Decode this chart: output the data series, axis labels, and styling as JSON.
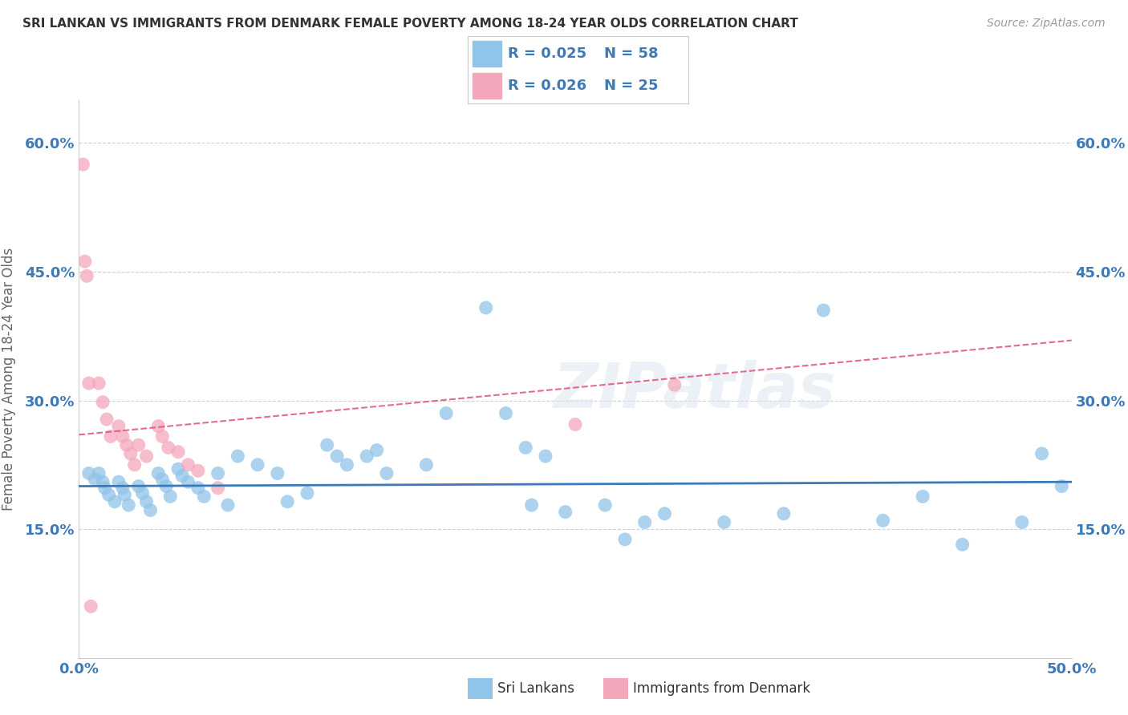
{
  "title": "SRI LANKAN VS IMMIGRANTS FROM DENMARK FEMALE POVERTY AMONG 18-24 YEAR OLDS CORRELATION CHART",
  "source": "Source: ZipAtlas.com",
  "ylabel": "Female Poverty Among 18-24 Year Olds",
  "xlim": [
    0.0,
    0.5
  ],
  "ylim": [
    0.0,
    0.65
  ],
  "xticks": [
    0.0,
    0.05,
    0.1,
    0.15,
    0.2,
    0.25,
    0.3,
    0.35,
    0.4,
    0.45,
    0.5
  ],
  "xtick_labels": [
    "0.0%",
    "",
    "",
    "",
    "",
    "",
    "",
    "",
    "",
    "",
    "50.0%"
  ],
  "yticks": [
    0.15,
    0.3,
    0.45,
    0.6
  ],
  "ytick_labels": [
    "15.0%",
    "30.0%",
    "45.0%",
    "60.0%"
  ],
  "watermark": "ZIPatlas",
  "legend_label_blue": "Sri Lankans",
  "legend_label_pink": "Immigrants from Denmark",
  "blue_color": "#90c4e8",
  "pink_color": "#f4a7bb",
  "blue_line_color": "#3c7ab8",
  "pink_line_color": "#e05080",
  "background_color": "#ffffff",
  "sri_lankans_x": [
    0.005,
    0.008,
    0.01,
    0.012,
    0.013,
    0.015,
    0.018,
    0.02,
    0.022,
    0.023,
    0.025,
    0.03,
    0.032,
    0.034,
    0.036,
    0.04,
    0.042,
    0.044,
    0.046,
    0.05,
    0.052,
    0.055,
    0.06,
    0.063,
    0.07,
    0.075,
    0.08,
    0.09,
    0.1,
    0.105,
    0.115,
    0.125,
    0.13,
    0.135,
    0.145,
    0.15,
    0.155,
    0.175,
    0.185,
    0.205,
    0.215,
    0.225,
    0.228,
    0.235,
    0.245,
    0.265,
    0.275,
    0.285,
    0.295,
    0.325,
    0.355,
    0.375,
    0.405,
    0.425,
    0.445,
    0.475,
    0.485,
    0.495
  ],
  "sri_lankans_y": [
    0.215,
    0.208,
    0.215,
    0.205,
    0.198,
    0.19,
    0.182,
    0.205,
    0.198,
    0.19,
    0.178,
    0.2,
    0.192,
    0.182,
    0.172,
    0.215,
    0.208,
    0.2,
    0.188,
    0.22,
    0.212,
    0.205,
    0.198,
    0.188,
    0.215,
    0.178,
    0.235,
    0.225,
    0.215,
    0.182,
    0.192,
    0.248,
    0.235,
    0.225,
    0.235,
    0.242,
    0.215,
    0.225,
    0.285,
    0.408,
    0.285,
    0.245,
    0.178,
    0.235,
    0.17,
    0.178,
    0.138,
    0.158,
    0.168,
    0.158,
    0.168,
    0.405,
    0.16,
    0.188,
    0.132,
    0.158,
    0.238,
    0.2
  ],
  "immigrants_x": [
    0.002,
    0.003,
    0.004,
    0.005,
    0.006,
    0.01,
    0.012,
    0.014,
    0.016,
    0.02,
    0.022,
    0.024,
    0.026,
    0.028,
    0.03,
    0.034,
    0.04,
    0.042,
    0.045,
    0.05,
    0.055,
    0.06,
    0.07,
    0.25,
    0.3
  ],
  "immigrants_y": [
    0.575,
    0.462,
    0.445,
    0.32,
    0.06,
    0.32,
    0.298,
    0.278,
    0.258,
    0.27,
    0.258,
    0.248,
    0.238,
    0.225,
    0.248,
    0.235,
    0.27,
    0.258,
    0.245,
    0.24,
    0.225,
    0.218,
    0.198,
    0.272,
    0.318
  ]
}
